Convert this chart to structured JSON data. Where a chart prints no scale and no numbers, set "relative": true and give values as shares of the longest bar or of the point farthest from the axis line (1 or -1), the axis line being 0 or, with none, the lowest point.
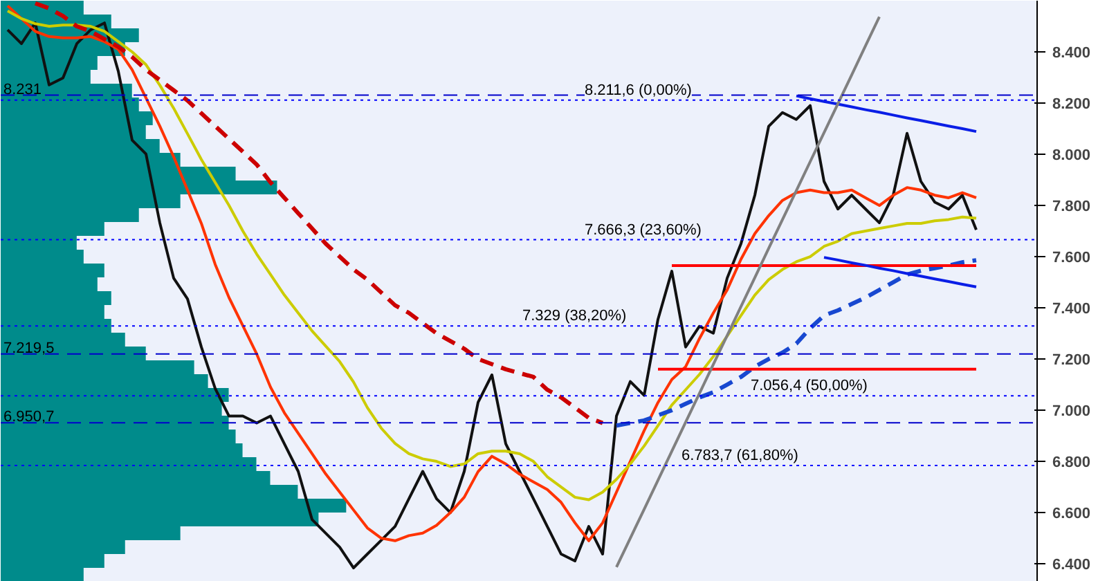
{
  "chart_data": [
    {
      "type": "line",
      "categories": [
        null,
        null,
        null,
        null,
        null,
        null,
        null,
        null,
        null,
        null,
        null,
        null,
        null,
        null,
        null,
        null,
        null,
        null,
        null,
        null,
        null,
        null,
        null,
        null,
        null,
        null,
        null,
        null,
        null,
        null,
        null,
        null,
        null,
        null,
        null,
        null,
        null,
        null,
        null,
        null,
        null,
        null,
        null,
        null,
        null,
        null,
        null,
        null,
        null,
        null,
        null,
        null,
        null,
        null,
        null,
        null,
        null,
        null,
        null,
        null,
        null,
        null,
        null,
        null,
        null,
        null,
        null,
        null,
        null,
        null,
        null
      ],
      "ylim": [
        6330,
        8600
      ],
      "yticks": [
        {
          "value": 6400,
          "label": "6.400"
        },
        {
          "value": 6600,
          "label": "6.600"
        },
        {
          "value": 6800,
          "label": "6.800"
        },
        {
          "value": 7000,
          "label": "7.000"
        },
        {
          "value": 7200,
          "label": "7.200"
        },
        {
          "value": 7400,
          "label": "7.400"
        },
        {
          "value": 7600,
          "label": "7.600"
        },
        {
          "value": 7800,
          "label": "7.800"
        },
        {
          "value": 8000,
          "label": "8.000"
        },
        {
          "value": 8200,
          "label": "8.200"
        },
        {
          "value": 8400,
          "label": "8.400"
        }
      ],
      "tick_labels": "y",
      "grid": false,
      "series": [
        {
          "color": "#111111",
          "line_style": "solid",
          "values": [
            8486,
            8432,
            8513,
            8271,
            8298,
            8432,
            8486,
            8513,
            8324,
            8055,
            8001,
            7732,
            7516,
            7435,
            7247,
            7085,
            6977,
            6977,
            6950,
            6977,
            6869,
            6761,
            6573,
            6519,
            6465,
            6384,
            6438,
            6492,
            6546,
            6654,
            6761,
            6654,
            6600,
            6761,
            7031,
            7138,
            6869,
            6761,
            6654,
            6546,
            6438,
            6411,
            6546,
            6438,
            6977,
            7112,
            7058,
            7355,
            7543,
            7247,
            7328,
            7301,
            7516,
            7651,
            7840,
            8109,
            8163,
            8136,
            8190,
            7894,
            7786,
            7840,
            7786,
            7732,
            7840,
            8082,
            7894,
            7813,
            7786,
            7840,
            7705
          ]
        },
        {
          "color": "#ff3300",
          "line_style": "solid",
          "values": [
            8580,
            8530,
            8480,
            8460,
            8455,
            8455,
            8460,
            8440,
            8410,
            8330,
            8220,
            8110,
            7990,
            7860,
            7730,
            7570,
            7440,
            7330,
            7220,
            7090,
            6990,
            6910,
            6830,
            6750,
            6680,
            6610,
            6540,
            6500,
            6490,
            6510,
            6520,
            6550,
            6600,
            6660,
            6760,
            6820,
            6790,
            6750,
            6720,
            6690,
            6640,
            6560,
            6490,
            6560,
            6680,
            6800,
            6920,
            7030,
            7120,
            7170,
            7280,
            7380,
            7470,
            7590,
            7690,
            7760,
            7820,
            7850,
            7860,
            7850,
            7850,
            7860,
            7830,
            7800,
            7840,
            7870,
            7860,
            7840,
            7830,
            7850,
            7830
          ]
        },
        {
          "color": "#cccc00",
          "line_style": "solid",
          "values": [
            8560,
            8530,
            8510,
            8500,
            8505,
            8505,
            8500,
            8480,
            8440,
            8400,
            8350,
            8270,
            8180,
            8080,
            7980,
            7890,
            7800,
            7700,
            7610,
            7530,
            7450,
            7380,
            7310,
            7250,
            7190,
            7110,
            7010,
            6930,
            6870,
            6830,
            6810,
            6800,
            6780,
            6790,
            6830,
            6840,
            6840,
            6830,
            6800,
            6740,
            6700,
            6660,
            6650,
            6680,
            6730,
            6790,
            6860,
            6940,
            7020,
            7080,
            7140,
            7210,
            7290,
            7370,
            7450,
            7510,
            7550,
            7580,
            7600,
            7640,
            7660,
            7690,
            7700,
            7710,
            7720,
            7730,
            7730,
            7740,
            7745,
            7755,
            7750
          ]
        },
        {
          "color": "#cc0000",
          "line_style": "dashed",
          "values": [
            null,
            null,
            8590,
            8570,
            8540,
            8500,
            8480,
            8450,
            8420,
            8380,
            8330,
            8290,
            8250,
            8210,
            8160,
            8110,
            8060,
            8010,
            7960,
            7890,
            7830,
            7770,
            7710,
            7650,
            7600,
            7550,
            7510,
            7460,
            7410,
            7380,
            7340,
            7300,
            7270,
            7240,
            7200,
            7180,
            7160,
            7145,
            7130,
            7080,
            7050,
            7010,
            6970,
            6950,
            null,
            null,
            null,
            null,
            null,
            null,
            null,
            null,
            null,
            null,
            null,
            null,
            null,
            null,
            null,
            null,
            null,
            null,
            null,
            null,
            null,
            null,
            null,
            null,
            null,
            null,
            null
          ]
        },
        {
          "color": "#1848d0",
          "line_style": "dashed",
          "values": [
            null,
            null,
            null,
            null,
            null,
            null,
            null,
            null,
            null,
            null,
            null,
            null,
            null,
            null,
            null,
            null,
            null,
            null,
            null,
            null,
            null,
            null,
            null,
            null,
            null,
            null,
            null,
            null,
            null,
            null,
            null,
            null,
            null,
            null,
            null,
            null,
            null,
            null,
            null,
            null,
            null,
            null,
            null,
            null,
            6940,
            6950,
            6960,
            6980,
            7000,
            7025,
            7050,
            7070,
            7100,
            7130,
            7170,
            7200,
            7225,
            7260,
            7320,
            7370,
            7390,
            7415,
            7440,
            7470,
            7500,
            7530,
            7545,
            7555,
            7565,
            7578,
            7586
          ]
        },
        {
          "color": "#ff0000",
          "line_style": "solid",
          "values": [
            null,
            null,
            null,
            null,
            null,
            null,
            null,
            null,
            null,
            null,
            null,
            null,
            null,
            null,
            null,
            null,
            null,
            null,
            null,
            null,
            null,
            null,
            null,
            null,
            null,
            null,
            null,
            null,
            null,
            null,
            null,
            null,
            null,
            null,
            null,
            null,
            null,
            null,
            null,
            null,
            null,
            null,
            null,
            null,
            null,
            null,
            null,
            null,
            7565,
            7565,
            7565,
            7565,
            7565,
            7565,
            7565,
            7565,
            7565,
            7565,
            7565,
            7565,
            7565,
            7565,
            7565,
            7565,
            7565,
            7565,
            7565,
            7565,
            7565,
            7565,
            7565
          ]
        },
        {
          "color": "#ff0000",
          "line_style": "solid",
          "values": [
            null,
            null,
            null,
            null,
            null,
            null,
            null,
            null,
            null,
            null,
            null,
            null,
            null,
            null,
            null,
            null,
            null,
            null,
            null,
            null,
            null,
            null,
            null,
            null,
            null,
            null,
            null,
            null,
            null,
            null,
            null,
            null,
            null,
            null,
            null,
            null,
            null,
            null,
            null,
            null,
            null,
            null,
            null,
            null,
            null,
            null,
            null,
            7160,
            7160,
            7160,
            7160,
            7160,
            7160,
            7160,
            7160,
            7160,
            7160,
            7160,
            7160,
            7160,
            7160,
            7160,
            7160,
            7160,
            7160,
            7160,
            7160,
            7160,
            7160,
            7160,
            7160
          ]
        },
        {
          "color": "#0a1ee6",
          "line_style": "solid",
          "values": [
            null,
            null,
            null,
            null,
            null,
            null,
            null,
            null,
            null,
            null,
            null,
            null,
            null,
            null,
            null,
            null,
            null,
            null,
            null,
            null,
            null,
            null,
            null,
            null,
            null,
            null,
            null,
            null,
            null,
            null,
            null,
            null,
            null,
            null,
            null,
            null,
            null,
            null,
            null,
            null,
            null,
            null,
            null,
            null,
            null,
            null,
            null,
            null,
            null,
            null,
            null,
            null,
            null,
            null,
            null,
            null,
            null,
            8228,
            8217,
            8206,
            8196,
            8185,
            8174,
            8164,
            8153,
            8142,
            8132,
            8121,
            8110,
            8100,
            8089
          ]
        },
        {
          "color": "#0a1ee6",
          "line_style": "solid",
          "values": [
            null,
            null,
            null,
            null,
            null,
            null,
            null,
            null,
            null,
            null,
            null,
            null,
            null,
            null,
            null,
            null,
            null,
            null,
            null,
            null,
            null,
            null,
            null,
            null,
            null,
            null,
            null,
            null,
            null,
            null,
            null,
            null,
            null,
            null,
            null,
            null,
            null,
            null,
            null,
            null,
            null,
            null,
            null,
            null,
            null,
            null,
            null,
            null,
            null,
            null,
            null,
            null,
            null,
            null,
            null,
            null,
            null,
            null,
            null,
            7597,
            7587,
            7576,
            7566,
            7555,
            7545,
            7534,
            7524,
            7513,
            7503,
            7492,
            7482
          ]
        },
        {
          "color": "#808080",
          "line_style": "solid",
          "values": [
            null,
            null,
            null,
            null,
            null,
            null,
            null,
            null,
            null,
            null,
            null,
            null,
            null,
            null,
            null,
            null,
            null,
            null,
            null,
            null,
            null,
            null,
            null,
            null,
            null,
            null,
            null,
            null,
            null,
            null,
            null,
            null,
            null,
            null,
            null,
            null,
            null,
            null,
            null,
            null,
            null,
            null,
            null,
            null,
            6387,
            6500,
            6613,
            6726,
            6840,
            6953,
            7066,
            7179,
            7292,
            7405,
            7518,
            7632,
            7745,
            7858,
            7971,
            8084,
            8197,
            8310,
            8424,
            8537,
            null,
            null,
            null,
            null,
            null,
            null,
            null
          ]
        }
      ],
      "ref_lines": [
        {
          "axis": "y",
          "value": 8231,
          "label": "8.231",
          "color": "#0000cc",
          "line_style": "dashed"
        },
        {
          "axis": "y",
          "value": 7219.5,
          "label": "7.219,5",
          "color": "#0000cc",
          "line_style": "dashed"
        },
        {
          "axis": "y",
          "value": 6950.7,
          "label": "6.950,7",
          "color": "#0000cc",
          "line_style": "dashed"
        },
        {
          "axis": "y",
          "value": 8211.6,
          "label": "8.211,6 (0,00%)",
          "color": "#0000ff",
          "line_style": "dotted"
        },
        {
          "axis": "y",
          "value": 7666.3,
          "label": "7.666,3 (23,60%)",
          "color": "#0000ff",
          "line_style": "dotted"
        },
        {
          "axis": "y",
          "value": 7329,
          "label": "7.329 (38,20%)",
          "color": "#0000ff",
          "line_style": "dotted"
        },
        {
          "axis": "y",
          "value": 7056.4,
          "label": "7.056,4 (50,00%)",
          "color": "#0000ff",
          "line_style": "dotted"
        },
        {
          "axis": "y",
          "value": 6783.7,
          "label": "6.783,7 (61,80%)",
          "color": "#0000ff",
          "line_style": "dotted"
        }
      ]
    },
    {
      "type": "bar",
      "orientation": "horizontal",
      "relative": true,
      "color": "#008b8b",
      "categories": [
        null,
        null,
        null,
        null,
        null,
        null,
        null,
        null,
        null,
        null,
        null,
        null,
        null,
        null,
        null,
        null,
        null,
        null,
        null,
        null,
        null,
        null,
        null,
        null,
        null,
        null,
        null,
        null,
        null,
        null,
        null,
        null,
        null,
        null,
        null,
        null,
        null,
        null,
        null,
        null,
        null,
        null
      ],
      "values": [
        0.24,
        0.32,
        0.4,
        0.36,
        0.28,
        0.26,
        0.38,
        0.4,
        0.44,
        0.42,
        0.46,
        0.52,
        0.68,
        0.8,
        0.52,
        0.4,
        0.3,
        0.22,
        0.24,
        0.3,
        0.28,
        0.32,
        0.3,
        0.32,
        0.36,
        0.42,
        0.56,
        0.6,
        0.66,
        0.64,
        0.66,
        0.68,
        0.7,
        0.74,
        0.78,
        0.86,
        1,
        0.92,
        0.52,
        0.36,
        0.3,
        0.24
      ]
    }
  ]
}
